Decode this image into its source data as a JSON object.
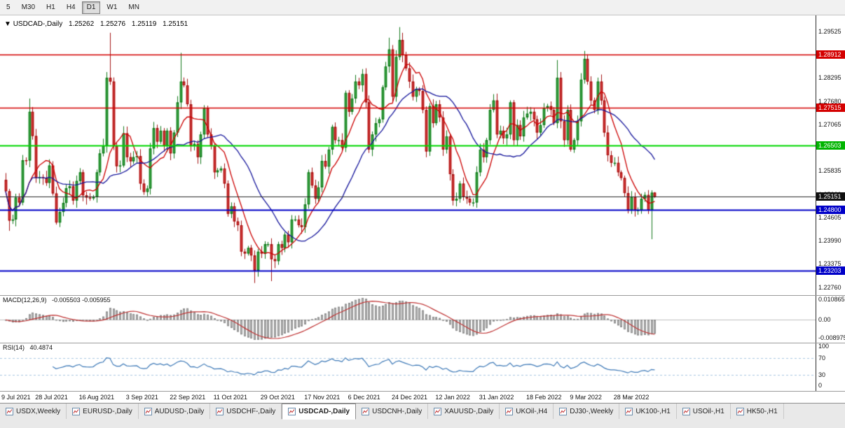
{
  "toolbar": {
    "timeframes": [
      {
        "label": "5",
        "active": false
      },
      {
        "label": "M30",
        "active": false
      },
      {
        "label": "H1",
        "active": false
      },
      {
        "label": "H4",
        "active": false
      },
      {
        "label": "D1",
        "active": true
      },
      {
        "label": "W1",
        "active": false
      },
      {
        "label": "MN",
        "active": false
      }
    ]
  },
  "chart_header": {
    "marker": "▼",
    "title": "USDCAD-,Daily",
    "open": "1.25262",
    "high": "1.25276",
    "low": "1.25119",
    "close": "1.25151"
  },
  "price_axis": {
    "max": 1.2995,
    "min": 1.2255,
    "ticks": [
      1.29525,
      1.2891,
      1.28295,
      1.2768,
      1.27065,
      1.2645,
      1.25835,
      1.2522,
      1.24605,
      1.2399,
      1.23375,
      1.2276
    ]
  },
  "hlines": [
    {
      "value": 1.28912,
      "line_color": "#d40000",
      "badge_color": "#d40000",
      "width": 1.4
    },
    {
      "value": 1.27515,
      "line_color": "#d40000",
      "badge_color": "#d40000",
      "width": 1.4
    },
    {
      "value": 1.26503,
      "line_color": "#00d800",
      "badge_color": "#00b400",
      "width": 2
    },
    {
      "value": 1.25151,
      "line_color": "#2a2a2a",
      "badge_color": "#101010",
      "width": 1,
      "current": true
    },
    {
      "value": 1.248,
      "line_color": "#0000c8",
      "badge_color": "#0000c8",
      "width": 2
    },
    {
      "value": 1.23203,
      "line_color": "#0000c8",
      "badge_color": "#0000c8",
      "width": 2
    }
  ],
  "chart_data": {
    "type": "candlestick",
    "symbol": "USDCAD-",
    "timeframe": "Daily",
    "first_open": 1.256,
    "closes": [
      1.253,
      1.2452,
      1.2455,
      1.2513,
      1.25,
      1.2612,
      1.2611,
      1.274,
      1.2676,
      1.2565,
      1.2567,
      1.2565,
      1.2552,
      1.2598,
      1.2524,
      1.2447,
      1.2475,
      1.2499,
      1.2538,
      1.2543,
      1.2505,
      1.2557,
      1.258,
      1.2519,
      1.2513,
      1.2511,
      1.2515,
      1.258,
      1.263,
      1.265,
      1.283,
      1.282,
      1.265,
      1.2596,
      1.2598,
      1.2683,
      1.262,
      1.2609,
      1.262,
      1.2623,
      1.255,
      1.2528,
      1.2537,
      1.2643,
      1.2697,
      1.2661,
      1.269,
      1.265,
      1.269,
      1.263,
      1.2685,
      1.2765,
      1.282,
      1.281,
      1.276,
      1.265,
      1.2655,
      1.262,
      1.268,
      1.275,
      1.268,
      1.265,
      1.258,
      1.2585,
      1.259,
      1.255,
      1.247,
      1.249,
      1.245,
      1.244,
      1.237,
      1.2365,
      1.238,
      1.236,
      1.232,
      1.237,
      1.2365,
      1.239,
      1.239,
      1.235,
      1.2345,
      1.239,
      1.238,
      1.2415,
      1.2395,
      1.2455,
      1.2455,
      1.244,
      1.2435,
      1.2495,
      1.258,
      1.2545,
      1.251,
      1.254,
      1.261,
      1.2595,
      1.264,
      1.27,
      1.2665,
      1.2665,
      1.2645,
      1.279,
      1.274,
      1.2775,
      1.282,
      1.281,
      1.284,
      1.2765,
      1.264,
      1.268,
      1.271,
      1.272,
      1.2805,
      1.286,
      1.2905,
      1.278,
      1.2885,
      1.293,
      1.289,
      1.2855,
      1.282,
      1.278,
      1.28,
      1.2795,
      1.2745,
      1.2635,
      1.2755,
      1.271,
      1.276,
      1.2725,
      1.264,
      1.2675,
      1.2575,
      1.2505,
      1.251,
      1.255,
      1.2515,
      1.251,
      1.25,
      1.25,
      1.258,
      1.264,
      1.262,
      1.2665,
      1.2745,
      1.277,
      1.268,
      1.269,
      1.267,
      1.268,
      1.2765,
      1.2665,
      1.2705,
      1.2675,
      1.2725,
      1.2735,
      1.274,
      1.272,
      1.2685,
      1.2705,
      1.275,
      1.2755,
      1.2745,
      1.271,
      1.283,
      1.2715,
      1.2665,
      1.2745,
      1.264,
      1.2665,
      1.2715,
      1.2825,
      1.288,
      1.282,
      1.277,
      1.2745,
      1.282,
      1.277,
      1.2685,
      1.2625,
      1.2605,
      1.2605,
      1.258,
      1.2565,
      1.2525,
      1.248,
      1.2515,
      1.248,
      1.248,
      1.251,
      1.252,
      1.248,
      1.2526,
      1.25151
    ],
    "spike_highs": {
      "7": 1.2775,
      "31": 1.2949,
      "52": 1.2896,
      "114": 1.2936,
      "117": 1.2964,
      "164": 1.2877,
      "172": 1.2901
    },
    "spike_lows": {
      "1": 1.2425,
      "74": 1.2287,
      "79": 1.2292,
      "192": 1.2403
    },
    "last_candle": {
      "o": 1.25262,
      "h": 1.25276,
      "l": 1.25119,
      "c": 1.25151
    },
    "ma_fast_period": 8,
    "ma_slow_period": 22
  },
  "macd_panel": {
    "label": "MACD(12,26,9)",
    "values_text": "-0.005503 -0.005955",
    "fast": 12,
    "slow": 26,
    "signal": 9,
    "ticks": {
      "top": "0.010865",
      "zero": "0.00",
      "bottom": "-0.008975"
    }
  },
  "rsi_panel": {
    "label": "RSI(14)",
    "value_text": "40.4874",
    "period": 14,
    "ticks": [
      "100",
      "70",
      "30",
      "0"
    ],
    "levels": [
      70,
      30
    ]
  },
  "date_axis": {
    "labels": [
      {
        "text": "9 Jul 2021",
        "index": 1
      },
      {
        "text": "28 Jul 2021",
        "index": 14
      },
      {
        "text": "16 Aug 2021",
        "index": 27
      },
      {
        "text": "3 Sep 2021",
        "index": 41
      },
      {
        "text": "22 Sep 2021",
        "index": 54
      },
      {
        "text": "11 Oct 2021",
        "index": 67
      },
      {
        "text": "29 Oct 2021",
        "index": 81
      },
      {
        "text": "17 Nov 2021",
        "index": 94
      },
      {
        "text": "6 Dec 2021",
        "index": 107
      },
      {
        "text": "24 Dec 2021",
        "index": 120
      },
      {
        "text": "12 Jan 2022",
        "index": 133
      },
      {
        "text": "31 Jan 2022",
        "index": 146
      },
      {
        "text": "18 Feb 2022",
        "index": 160
      },
      {
        "text": "9 Mar 2022",
        "index": 173
      },
      {
        "text": "28 Mar 2022",
        "index": 186
      }
    ]
  },
  "tabs": [
    {
      "label": "USDX,Weekly",
      "active": false
    },
    {
      "label": "EURUSD-,Daily",
      "active": false
    },
    {
      "label": "AUDUSD-,Daily",
      "active": false
    },
    {
      "label": "USDCHF-,Daily",
      "active": false
    },
    {
      "label": "USDCAD-,Daily",
      "active": true
    },
    {
      "label": "USDCNH-,Daily",
      "active": false
    },
    {
      "label": "XAUUSD-,Daily",
      "active": false
    },
    {
      "label": "UKOil-,H4",
      "active": false
    },
    {
      "label": "DJ30-,Weekly",
      "active": false
    },
    {
      "label": "UK100-,H1",
      "active": false
    },
    {
      "label": "USOil-,H1",
      "active": false
    },
    {
      "label": "HK50-,H1",
      "active": false
    }
  ],
  "colors": {
    "up_fill": "#3fae49",
    "up_border": "#157a1e",
    "down_fill": "#e23a3a",
    "down_border": "#a31515",
    "ma_fast": "#cc0000",
    "ma_slow": "#16169c",
    "macd_hist": "#b6b6b6",
    "macd_hist_border": "#8e8e8e",
    "macd_signal": "#c03434",
    "rsi_line": "#3e7ab8",
    "rsi_level": "#a9c7e2"
  }
}
